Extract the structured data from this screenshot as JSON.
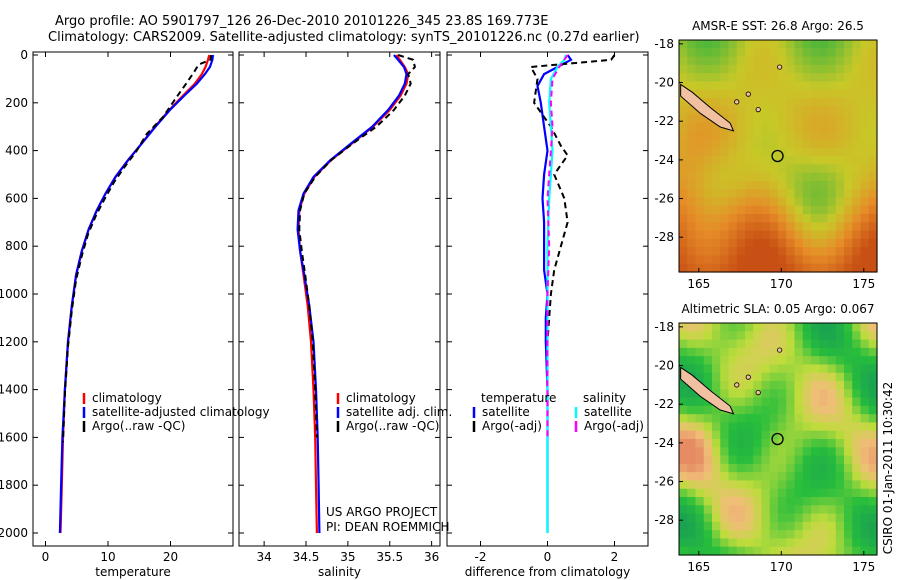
{
  "header": {
    "line1": "Argo profile: AO 5901797_126 26-Dec-2010 20101226_345 23.8S 169.773E",
    "line2": "Climatology: CARS2009. Satellite-adjusted climatology: synTS_20101226.nc (0.27d earlier)"
  },
  "colors": {
    "climatology": "#ff0000",
    "satellite": "#0000ff",
    "argo": "#000000",
    "sal_satellite": "#00ffff",
    "sal_argo": "#ff00ff",
    "land": "#f0c0a0"
  },
  "chart_data": [
    {
      "type": "line",
      "id": "temperature",
      "xlabel": "temperature",
      "ylabel": "",
      "xlim": [
        -2,
        30
      ],
      "ylim": [
        2050,
        0
      ],
      "y_reversed": true,
      "xticks": [
        0,
        10,
        20
      ],
      "yticks": [
        0,
        200,
        400,
        600,
        800,
        1000,
        1200,
        1400,
        1600,
        1800,
        2000
      ],
      "legend": {
        "placement": "center-left",
        "entries": [
          "climatology",
          "satellite-adjusted climatology",
          "Argo(..raw -QC)"
        ]
      },
      "series": [
        {
          "name": "climatology",
          "style": "solid",
          "color": "#ff0000",
          "x": [
            26.2,
            26.0,
            25.6,
            25.0,
            23.9,
            22.0,
            19.8,
            17.5,
            15.4,
            13.2,
            11.2,
            9.6,
            8.2,
            6.9,
            5.8,
            4.9,
            4.2,
            3.6,
            3.1,
            2.8,
            2.6,
            2.4
          ],
          "y": [
            0,
            20,
            50,
            80,
            120,
            170,
            230,
            300,
            370,
            440,
            510,
            580,
            650,
            730,
            820,
            920,
            1050,
            1200,
            1400,
            1600,
            1800,
            2000
          ]
        },
        {
          "name": "satellite-adjusted climatology",
          "style": "solid",
          "color": "#0000ff",
          "x": [
            26.8,
            26.7,
            26.3,
            25.5,
            24.2,
            22.2,
            19.9,
            17.6,
            15.4,
            13.2,
            11.2,
            9.6,
            8.2,
            6.9,
            5.8,
            4.9,
            4.2,
            3.6,
            3.1,
            2.7,
            2.5,
            2.3
          ],
          "y": [
            0,
            20,
            50,
            80,
            120,
            170,
            230,
            300,
            370,
            440,
            510,
            580,
            650,
            730,
            820,
            920,
            1050,
            1200,
            1400,
            1600,
            1800,
            2000
          ]
        },
        {
          "name": "Argo(..raw -QC)",
          "style": "dashed",
          "color": "#000000",
          "x": [
            26.5,
            26.4,
            24.5,
            23.8,
            22.5,
            20.6,
            18.8,
            16.2,
            14.6,
            12.6,
            11.0,
            9.5,
            8.1,
            6.8,
            5.8,
            4.9,
            4.2,
            3.6,
            3.1,
            2.8
          ],
          "y": [
            0,
            20,
            40,
            70,
            120,
            190,
            260,
            330,
            400,
            470,
            530,
            600,
            670,
            750,
            840,
            940,
            1070,
            1220,
            1420,
            1620
          ]
        }
      ]
    },
    {
      "type": "line",
      "id": "salinity",
      "xlabel": "salinity",
      "ylabel": "",
      "xlim": [
        33.7,
        36.1
      ],
      "ylim": [
        2050,
        0
      ],
      "y_reversed": true,
      "xticks": [
        34,
        34.5,
        35,
        35.5,
        36
      ],
      "legend": {
        "placement": "center-left",
        "entries": [
          "climatology",
          "satellite adj. clim.",
          "Argo(..raw -QC)"
        ]
      },
      "annotation": [
        "US ARGO PROJECT",
        "PI: DEAN ROEMMICH"
      ],
      "series": [
        {
          "name": "climatology",
          "style": "solid",
          "color": "#ff0000",
          "x": [
            35.58,
            35.62,
            35.68,
            35.72,
            35.7,
            35.63,
            35.5,
            35.3,
            35.05,
            34.8,
            34.6,
            34.48,
            34.42,
            34.41,
            34.43,
            34.47,
            34.52,
            34.56,
            34.59,
            34.61,
            34.62,
            34.63
          ],
          "y": [
            0,
            20,
            50,
            80,
            120,
            170,
            230,
            300,
            370,
            440,
            510,
            580,
            650,
            730,
            820,
            920,
            1050,
            1200,
            1400,
            1600,
            1800,
            2000
          ]
        },
        {
          "name": "satellite adj. clim.",
          "style": "solid",
          "color": "#0000ff",
          "x": [
            35.55,
            35.6,
            35.67,
            35.7,
            35.68,
            35.61,
            35.48,
            35.29,
            35.04,
            34.79,
            34.59,
            34.47,
            34.41,
            34.4,
            34.43,
            34.48,
            34.54,
            34.59,
            34.62,
            34.64,
            34.65,
            34.66
          ],
          "y": [
            0,
            20,
            50,
            80,
            120,
            170,
            230,
            300,
            370,
            440,
            510,
            580,
            650,
            730,
            820,
            920,
            1050,
            1200,
            1400,
            1600,
            1800,
            2000
          ]
        },
        {
          "name": "Argo(..raw -QC)",
          "style": "dashed",
          "color": "#000000",
          "x": [
            35.6,
            35.78,
            35.8,
            35.72,
            35.75,
            35.68,
            35.55,
            35.34,
            35.06,
            34.8,
            34.61,
            34.48,
            34.43,
            34.42,
            34.45,
            34.49,
            34.54,
            34.58,
            34.61,
            34.63
          ],
          "y": [
            0,
            20,
            50,
            80,
            120,
            170,
            230,
            300,
            370,
            440,
            510,
            580,
            650,
            730,
            820,
            920,
            1050,
            1200,
            1400,
            1600
          ]
        }
      ]
    },
    {
      "type": "line",
      "id": "difference",
      "xlabel": "difference from climatology",
      "ylabel": "",
      "xlim": [
        -3,
        3
      ],
      "ylim": [
        2050,
        0
      ],
      "y_reversed": true,
      "xticks": [
        -2,
        0,
        2
      ],
      "legend": {
        "placement": "center",
        "group_titles": [
          "temperature",
          "salinity"
        ],
        "entries": [
          "satellite",
          "Argo(-adj)",
          "satellite",
          "Argo(-adj)"
        ]
      },
      "series": [
        {
          "name": "satellite",
          "group": "temperature",
          "style": "solid",
          "color": "#0000ff",
          "x": [
            0.6,
            0.7,
            0.3,
            -0.1,
            -0.3,
            -0.2,
            -0.1,
            0.0,
            -0.1,
            -0.15,
            -0.1,
            -0.1,
            -0.1,
            0.0,
            -0.05,
            -0.05,
            0.0,
            0.0,
            0.0,
            0.0
          ],
          "y": [
            0,
            20,
            50,
            80,
            130,
            200,
            300,
            400,
            500,
            600,
            700,
            800,
            900,
            1000,
            1100,
            1200,
            1400,
            1600,
            1800,
            2000
          ]
        },
        {
          "name": "Argo(-adj)",
          "group": "temperature",
          "style": "dashed",
          "color": "#000000",
          "x": [
            2.0,
            1.9,
            -0.5,
            -0.3,
            -0.4,
            0.1,
            0.4,
            0.6,
            0.2,
            0.5,
            0.6,
            0.4,
            0.2,
            0.1,
            0.0,
            0.0,
            0.0,
            0.0
          ],
          "y": [
            0,
            20,
            50,
            100,
            200,
            300,
            380,
            420,
            500,
            600,
            700,
            800,
            900,
            1000,
            1200,
            1400,
            1600,
            1800
          ]
        },
        {
          "name": "satellite",
          "group": "salinity",
          "style": "solid",
          "color": "#00ffff",
          "x": [
            0.55,
            0.5,
            0.3,
            0.1,
            0.05,
            0.1,
            0.15,
            0.1,
            0.05,
            0.0,
            0.0,
            0.0,
            0.0,
            0.0,
            0.0
          ],
          "y": [
            0,
            20,
            50,
            100,
            200,
            300,
            400,
            500,
            600,
            800,
            1000,
            1200,
            1400,
            1700,
            2000
          ]
        },
        {
          "name": "Argo(-adj)",
          "group": "salinity",
          "style": "dashed",
          "color": "#ff00ff",
          "x": [
            0.6,
            0.5,
            0.35,
            0.15,
            0.1,
            0.15,
            0.1,
            0.05,
            0.0,
            0.05,
            0.0,
            0.0,
            0.0
          ],
          "y": [
            0,
            20,
            50,
            100,
            200,
            300,
            400,
            500,
            600,
            800,
            1000,
            1300,
            1600
          ]
        }
      ]
    },
    {
      "type": "heatmap",
      "id": "amsr-sst",
      "title": "AMSR-E SST: 26.8 Argo: 26.5",
      "xticks": [
        165,
        170,
        175
      ],
      "yticks": [
        -18,
        -20,
        -22,
        -24,
        -26,
        -28
      ],
      "xlim": [
        163.8,
        175.8
      ],
      "ylim": [
        -29.8,
        -17.8
      ],
      "argo_position": {
        "lon": 169.773,
        "lat": -23.8
      }
    },
    {
      "type": "heatmap",
      "id": "altimetric-sla",
      "title": "Altimetric SLA: 0.05 Argo: 0.067",
      "xticks": [
        165,
        170,
        175
      ],
      "yticks": [
        -18,
        -20,
        -22,
        -24,
        -26,
        -28
      ],
      "xlim": [
        163.8,
        175.8
      ],
      "ylim": [
        -29.8,
        -17.8
      ],
      "argo_position": {
        "lon": 169.773,
        "lat": -23.8
      }
    }
  ],
  "side_stamp": "CSIRO 01-Jan-2011 10:30:42"
}
